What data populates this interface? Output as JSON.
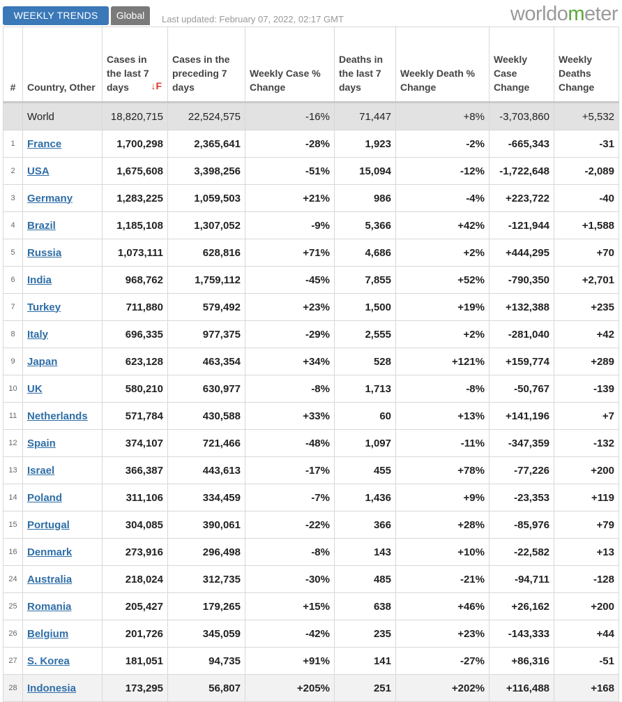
{
  "header": {
    "tab_weekly": "WEEKLY TRENDS",
    "tab_global": "Global",
    "last_updated": "Last updated: February 07, 2022, 02:17 GMT",
    "logo_pre": "worldo",
    "logo_globe": "m",
    "logo_post": "eter"
  },
  "columns": [
    "#",
    "Country, Other",
    "Cases in the last 7 days",
    "Cases in the preceding 7 days",
    "Weekly Case % Change",
    "Deaths in the last 7 days",
    "Weekly Death % Change",
    "Weekly Case Change",
    "Weekly Deaths Change"
  ],
  "sort_icon": "↓F",
  "world": [
    "",
    "World",
    "18,820,715",
    "22,524,575",
    "-16%",
    "71,447",
    "+8%",
    "-3,703,860",
    "+5,532"
  ],
  "rows": [
    [
      "1",
      "France",
      "1,700,298",
      "2,365,641",
      "-28%",
      "1,923",
      "-2%",
      "-665,343",
      "-31"
    ],
    [
      "2",
      "USA",
      "1,675,608",
      "3,398,256",
      "-51%",
      "15,094",
      "-12%",
      "-1,722,648",
      "-2,089"
    ],
    [
      "3",
      "Germany",
      "1,283,225",
      "1,059,503",
      "+21%",
      "986",
      "-4%",
      "+223,722",
      "-40"
    ],
    [
      "4",
      "Brazil",
      "1,185,108",
      "1,307,052",
      "-9%",
      "5,366",
      "+42%",
      "-121,944",
      "+1,588"
    ],
    [
      "5",
      "Russia",
      "1,073,111",
      "628,816",
      "+71%",
      "4,686",
      "+2%",
      "+444,295",
      "+70"
    ],
    [
      "6",
      "India",
      "968,762",
      "1,759,112",
      "-45%",
      "7,855",
      "+52%",
      "-790,350",
      "+2,701"
    ],
    [
      "7",
      "Turkey",
      "711,880",
      "579,492",
      "+23%",
      "1,500",
      "+19%",
      "+132,388",
      "+235"
    ],
    [
      "8",
      "Italy",
      "696,335",
      "977,375",
      "-29%",
      "2,555",
      "+2%",
      "-281,040",
      "+42"
    ],
    [
      "9",
      "Japan",
      "623,128",
      "463,354",
      "+34%",
      "528",
      "+121%",
      "+159,774",
      "+289"
    ],
    [
      "10",
      "UK",
      "580,210",
      "630,977",
      "-8%",
      "1,713",
      "-8%",
      "-50,767",
      "-139"
    ],
    [
      "11",
      "Netherlands",
      "571,784",
      "430,588",
      "+33%",
      "60",
      "+13%",
      "+141,196",
      "+7"
    ],
    [
      "12",
      "Spain",
      "374,107",
      "721,466",
      "-48%",
      "1,097",
      "-11%",
      "-347,359",
      "-132"
    ],
    [
      "13",
      "Israel",
      "366,387",
      "443,613",
      "-17%",
      "455",
      "+78%",
      "-77,226",
      "+200"
    ],
    [
      "14",
      "Poland",
      "311,106",
      "334,459",
      "-7%",
      "1,436",
      "+9%",
      "-23,353",
      "+119"
    ],
    [
      "15",
      "Portugal",
      "304,085",
      "390,061",
      "-22%",
      "366",
      "+28%",
      "-85,976",
      "+79"
    ],
    [
      "16",
      "Denmark",
      "273,916",
      "296,498",
      "-8%",
      "143",
      "+10%",
      "-22,582",
      "+13"
    ],
    [
      "24",
      "Australia",
      "218,024",
      "312,735",
      "-30%",
      "485",
      "-21%",
      "-94,711",
      "-128"
    ],
    [
      "25",
      "Romania",
      "205,427",
      "179,265",
      "+15%",
      "638",
      "+46%",
      "+26,162",
      "+200"
    ],
    [
      "26",
      "Belgium",
      "201,726",
      "345,059",
      "-42%",
      "235",
      "+23%",
      "-143,333",
      "+44"
    ],
    [
      "27",
      "S. Korea",
      "181,051",
      "94,735",
      "+91%",
      "141",
      "-27%",
      "+86,316",
      "-51"
    ],
    [
      "28",
      "Indonesia",
      "173,295",
      "56,807",
      "+205%",
      "251",
      "+202%",
      "+116,488",
      "+168"
    ]
  ]
}
